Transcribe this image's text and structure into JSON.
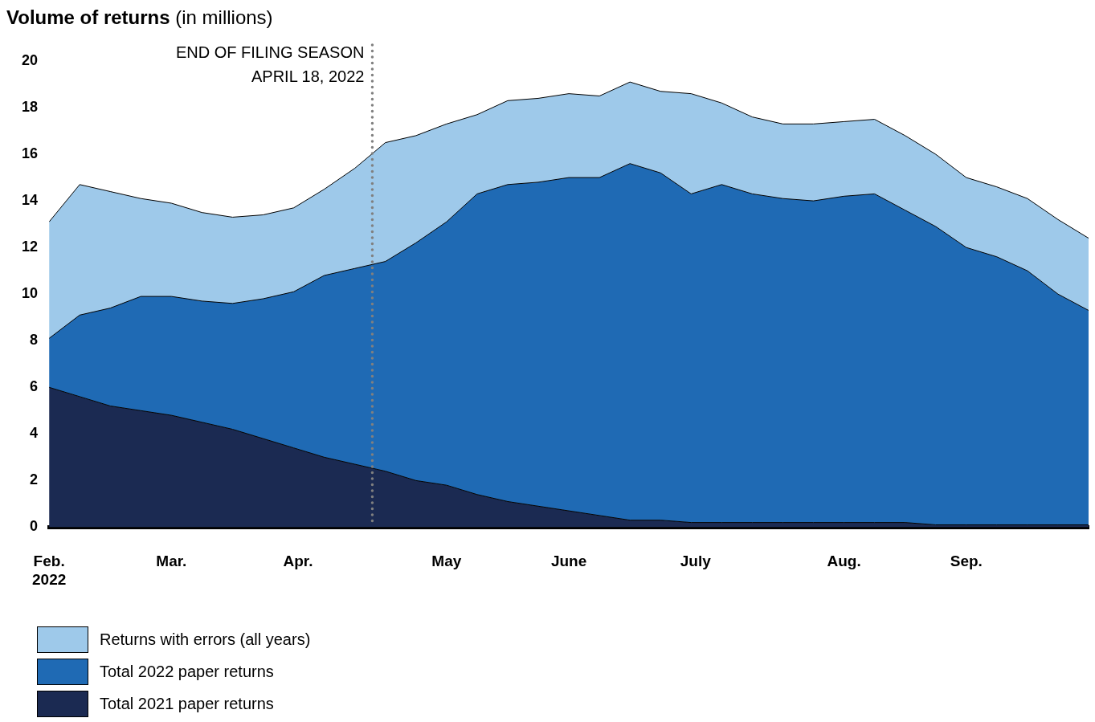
{
  "chart_data": {
    "type": "area",
    "title": "Volume of returns",
    "subtitle": "(in millions)",
    "stacked": true,
    "grid": false,
    "legend": "bottom left",
    "marker": "none",
    "line_style": "solid",
    "x": [
      "2022-02-03",
      "2022-02-10",
      "2022-02-17",
      "2022-02-24",
      "2022-03-03",
      "2022-03-10",
      "2022-03-17",
      "2022-03-24",
      "2022-03-31",
      "2022-04-07",
      "2022-04-14",
      "2022-04-21",
      "2022-04-28",
      "2022-05-05",
      "2022-05-12",
      "2022-05-19",
      "2022-05-26",
      "2022-06-02",
      "2022-06-09",
      "2022-06-16",
      "2022-06-23",
      "2022-06-30",
      "2022-07-07",
      "2022-07-14",
      "2022-07-21",
      "2022-07-28",
      "2022-08-04",
      "2022-08-11",
      "2022-08-18",
      "2022-08-25",
      "2022-09-01",
      "2022-09-08",
      "2022-09-15",
      "2022-09-22",
      "2022-09-29"
    ],
    "series": [
      {
        "name": "Total 2021 paper returns",
        "color": "#1b2a52",
        "values": [
          6.0,
          5.6,
          5.2,
          5.0,
          4.8,
          4.5,
          4.2,
          3.8,
          3.4,
          3.0,
          2.7,
          2.4,
          2.0,
          1.8,
          1.4,
          1.1,
          0.9,
          0.7,
          0.5,
          0.3,
          0.3,
          0.2,
          0.2,
          0.2,
          0.2,
          0.2,
          0.2,
          0.2,
          0.2,
          0.1,
          0.1,
          0.1,
          0.1,
          0.1,
          0.1
        ]
      },
      {
        "name": "Total 2022 paper returns",
        "color": "#1f6ab4",
        "values": [
          2.1,
          3.5,
          4.2,
          4.9,
          5.1,
          5.2,
          5.4,
          6.0,
          6.7,
          7.8,
          8.4,
          9.0,
          10.2,
          11.3,
          12.9,
          13.6,
          13.9,
          14.3,
          14.5,
          15.3,
          14.9,
          14.1,
          14.5,
          14.1,
          13.9,
          13.8,
          14.0,
          14.1,
          13.4,
          12.8,
          11.9,
          11.5,
          10.9,
          9.9,
          9.2
        ]
      },
      {
        "name": "Returns with errors (all years)",
        "color": "#9ec9ea",
        "values": [
          5.0,
          5.6,
          5.0,
          4.2,
          4.0,
          3.8,
          3.7,
          3.6,
          3.6,
          3.7,
          4.3,
          5.1,
          4.6,
          4.2,
          3.4,
          3.6,
          3.6,
          3.6,
          3.5,
          3.5,
          3.5,
          4.3,
          3.5,
          3.3,
          3.2,
          3.3,
          3.2,
          3.2,
          3.2,
          3.1,
          3.0,
          3.0,
          3.1,
          3.2,
          3.1
        ]
      }
    ],
    "xlim": [
      "2022-02-03",
      "2022-09-29"
    ],
    "xticks": [
      {
        "value": "2022-02-03",
        "label": "Feb.\n2022"
      },
      {
        "value": "2022-03-03",
        "label": "Mar."
      },
      {
        "value": "2022-04-01",
        "label": "Apr."
      },
      {
        "value": "2022-05-05",
        "label": "May"
      },
      {
        "value": "2022-06-02",
        "label": "June"
      },
      {
        "value": "2022-07-01",
        "label": "July"
      },
      {
        "value": "2022-08-04",
        "label": "Aug."
      },
      {
        "value": "2022-09-01",
        "label": "Sep."
      }
    ],
    "ylim": [
      0,
      20
    ],
    "yticks": [
      0,
      2,
      4,
      6,
      8,
      10,
      12,
      14,
      16,
      18,
      20
    ],
    "ref_lines": [
      {
        "axis": "x",
        "value": "2022-04-18",
        "label": "END OF FILING SEASON\nAPRIL 18, 2022",
        "color": "#808080",
        "line_style": "dotted"
      }
    ]
  }
}
